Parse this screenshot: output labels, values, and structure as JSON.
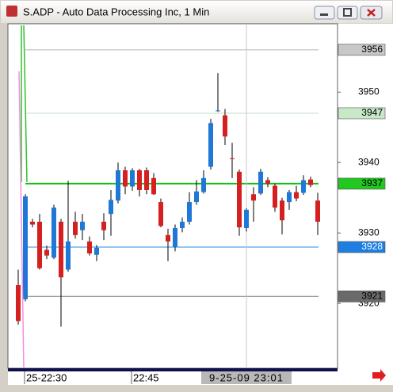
{
  "window_title": "S.ADP - Auto Data Processing Inc, 1 Min",
  "chart_data": {
    "type": "candlestick",
    "categories": [
      null,
      "25-22:30",
      null,
      null,
      null,
      null,
      null,
      null,
      null,
      null,
      null,
      null,
      null,
      null,
      null,
      null,
      "22:45",
      null,
      null,
      null,
      null,
      null,
      null,
      null,
      null,
      null,
      null,
      null,
      null,
      null,
      null,
      null,
      "9-25-09 23:01",
      null,
      null,
      null,
      null,
      null,
      null,
      null,
      null,
      null,
      null
    ],
    "open": [
      3922.6,
      3920.6,
      3931.6,
      3931.6,
      3927.6,
      3926.5,
      3931.6,
      3924.8,
      3931.6,
      3930.4,
      3928.8,
      3926.9,
      3931.6,
      3932.7,
      3934.6,
      3938.9,
      3936.6,
      3938.9,
      3938.9,
      3937.8,
      3934.4,
      3929.7,
      3928,
      3930.7,
      3931.6,
      3934.4,
      3935.8,
      3939.4,
      3947.3,
      3946.7,
      3940.6,
      3938.7,
      3930.7,
      3935.5,
      3935.6,
      3937.5,
      3936.7,
      3934.6,
      3934.4,
      3935.8,
      3935.7,
      3937.6,
      3934.6
    ],
    "high": [
      3924.8,
      3935.5,
      3932,
      3932.7,
      3928.2,
      3934,
      3932,
      3937.4,
      3933,
      3932.7,
      3929.5,
      3928.3,
      3932.8,
      3936.1,
      3940,
      3939.4,
      3939.2,
      3939.1,
      3939.3,
      3938.5,
      3934.9,
      3930.6,
      3931.2,
      3932.2,
      3935.8,
      3937.5,
      3938.9,
      3946.2,
      3952.7,
      3947.6,
      3942.8,
      3939,
      3933.5,
      3936.5,
      3939.1,
      3937.9,
      3937,
      3935,
      3936.1,
      3936.7,
      3938.2,
      3938,
      3935.7
    ],
    "low": [
      3917,
      3920.3,
      3930.8,
      3924.8,
      3926.3,
      3926.3,
      3916.7,
      3924.5,
      3929.2,
      3929,
      3926.8,
      3926,
      3929,
      3929.6,
      3934.2,
      3935.5,
      3936,
      3935.2,
      3935.5,
      3935.4,
      3930.8,
      3926,
      3927.4,
      3930.1,
      3931.2,
      3934,
      3935.6,
      3939,
      3947.2,
      3942.5,
      3937.8,
      3929.6,
      3930.2,
      3931.6,
      3935.4,
      3936.5,
      3933,
      3929.8,
      3933.3,
      3934.5,
      3935.4,
      3936.5,
      3929.7
    ],
    "close": [
      3917.5,
      3935.2,
      3931.2,
      3925,
      3926.8,
      3933.6,
      3923.7,
      3928.8,
      3929.7,
      3931.6,
      3927.1,
      3927.9,
      3930.4,
      3934.7,
      3938.9,
      3936.6,
      3938.9,
      3936.1,
      3936.1,
      3935.5,
      3931,
      3928.8,
      3930.7,
      3931.6,
      3934.4,
      3935.9,
      3937.8,
      3945.6,
      3947.4,
      3943.7,
      3940.5,
      3930.8,
      3933.3,
      3934.6,
      3938.7,
      3937,
      3933.6,
      3931.8,
      3935.8,
      3934.9,
      3937.5,
      3936.8,
      3931.6
    ],
    "up_color": "#1f78d6",
    "down_color": "#d62020",
    "ylim": [
      3910.8,
      3959.7
    ],
    "yticks": [
      3950,
      3940,
      3930,
      3920
    ],
    "price_lines": [
      {
        "value": 3956,
        "color": "#b8b8b8",
        "box_color": "#c8c8c8",
        "text_color": "#000000"
      },
      {
        "value": 3947,
        "color": "#c4dcc4",
        "box_color": "#c8e8c8",
        "text_color": "#000000"
      },
      {
        "value": 3937,
        "color": "#10c010",
        "box_color": "#20c820",
        "text_color": "#000000"
      },
      {
        "value": 3928,
        "color": "#2a8ae0",
        "box_color": "#1e7fe0",
        "text_color": "#ffffff"
      },
      {
        "value": 3921,
        "color": "#7a7a7a",
        "box_color": "#6a6a6a",
        "text_color": "#000000"
      }
    ]
  }
}
